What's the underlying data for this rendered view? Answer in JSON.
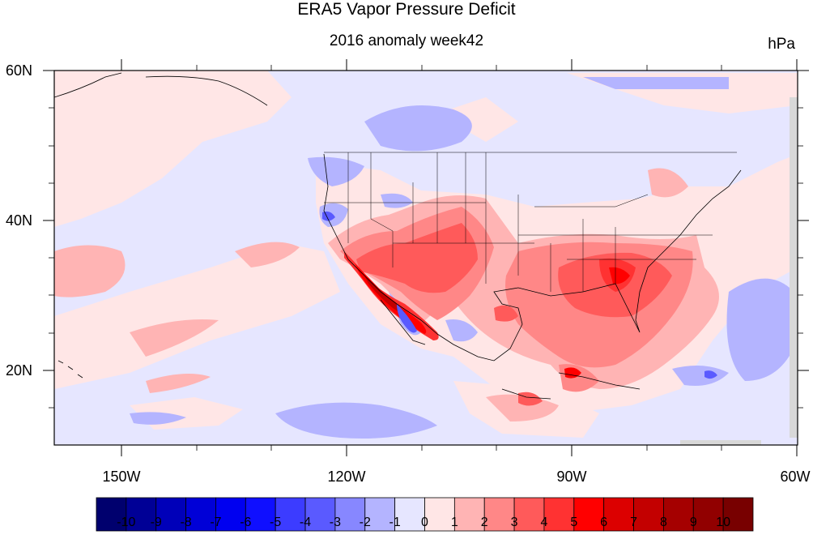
{
  "title": "ERA5 Vapor Pressure Deficit",
  "subtitle": "2016 anomaly week42",
  "units": "hPa",
  "lat_labels": [
    "60N",
    "40N",
    "20N"
  ],
  "lon_labels": [
    "150W",
    "120W",
    "90W",
    "60W"
  ],
  "colorbar": {
    "labels": [
      "-10",
      "-9",
      "-8",
      "-7",
      "-6",
      "-5",
      "-4",
      "-3",
      "-2",
      "-1",
      "0",
      "1",
      "2",
      "3",
      "4",
      "5",
      "6",
      "7",
      "8",
      "9",
      "10"
    ],
    "colors": [
      "#00006e",
      "#000096",
      "#0000b9",
      "#0000d7",
      "#0000f0",
      "#0f0fff",
      "#3c3cff",
      "#5a5aff",
      "#8787ff",
      "#b4b4ff",
      "#e6e6ff",
      "#ffe6e6",
      "#ffb4b4",
      "#ff8787",
      "#ff5a5a",
      "#ff3232",
      "#ff0000",
      "#dc0000",
      "#c30000",
      "#a50000",
      "#910000",
      "#780000"
    ]
  },
  "map": {
    "lon_range": [
      -160,
      -60
    ],
    "lat_range": [
      10,
      60
    ],
    "background_color": "#e6e6ff",
    "features": [
      {
        "name": "pacific-positive-band",
        "level": 1
      },
      {
        "name": "southwest-us-mexico-max",
        "level": 8
      },
      {
        "name": "southeast-us-max",
        "level": 6
      },
      {
        "name": "gulf-of-mexico-positive",
        "level": 4
      },
      {
        "name": "caribbean-local-max",
        "level": 7
      },
      {
        "name": "baja-negative",
        "level": -4
      },
      {
        "name": "atlantic-negative",
        "level": -3
      },
      {
        "name": "canada-negative",
        "level": -2
      }
    ]
  }
}
